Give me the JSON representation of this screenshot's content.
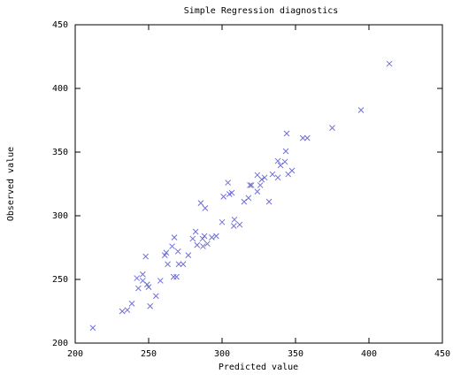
{
  "chart_data": {
    "type": "scatter",
    "title": "Simple Regression diagnostics",
    "x_label": "Predicted value",
    "y_label": "Observed value",
    "color": "#7070d8",
    "x": [
      212,
      232,
      235.5,
      238.6,
      242,
      243,
      246,
      246,
      248,
      249,
      250,
      251,
      255,
      258,
      261,
      262,
      263,
      266,
      267.5,
      267,
      269,
      270,
      270.5,
      273.5,
      277,
      280,
      282,
      283,
      285.5,
      286.7,
      288,
      288.5,
      287,
      290,
      293,
      296,
      300,
      301,
      305,
      304,
      306.6,
      308,
      308.4,
      312,
      315,
      318,
      319,
      320,
      324,
      324,
      326,
      327,
      329,
      332,
      334.3,
      338,
      338,
      339.8,
      342.8,
      344,
      343.4,
      345,
      347.6,
      355,
      358,
      375,
      394.6,
      413.9
    ],
    "values": [
      212,
      225,
      226,
      231,
      251,
      243,
      254,
      249,
      268,
      246,
      244,
      229,
      237,
      249,
      269,
      271,
      262,
      276,
      283,
      252,
      252,
      272,
      262,
      262,
      269,
      282,
      287.5,
      277,
      310,
      282,
      284,
      306,
      276,
      278,
      283,
      284,
      295,
      315,
      317,
      326,
      318,
      292,
      297,
      293,
      311,
      314,
      324,
      324,
      319,
      332,
      324,
      328.5,
      330,
      311,
      332.6,
      343,
      330,
      339.6,
      342.4,
      364.6,
      350.7,
      332.6,
      335.4,
      361,
      361,
      369,
      383,
      419.4
    ],
    "xlim": [
      200,
      450
    ],
    "ylim": [
      200,
      450
    ],
    "xticks": [
      200,
      250,
      300,
      350,
      400,
      450
    ],
    "yticks": [
      200,
      250,
      300,
      350,
      400,
      450
    ]
  }
}
